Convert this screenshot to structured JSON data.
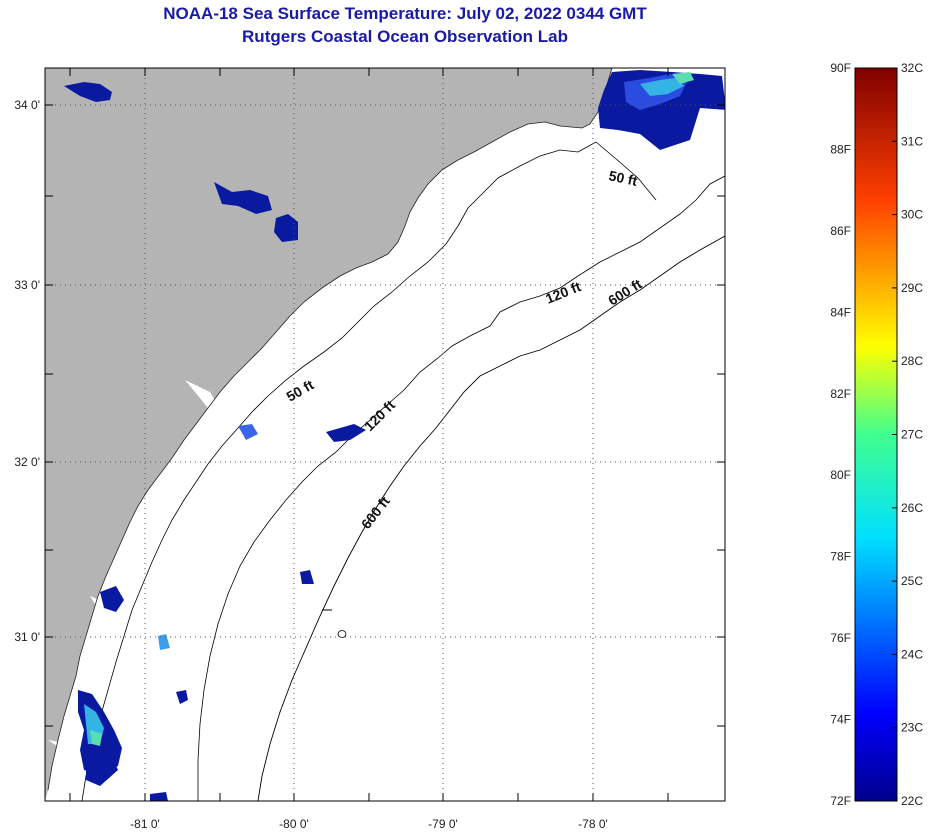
{
  "header": {
    "title": "NOAA-18 Sea Surface Temperature:  July 02, 2022 0344 GMT",
    "subtitle": "Rutgers Coastal Ocean Observation Lab"
  },
  "map": {
    "lat_ticks": [
      "34 0'",
      "33 0'",
      "32 0'",
      "31 0'"
    ],
    "lon_ticks": [
      "-81 0'",
      "-80 0'",
      "-79 0'",
      "-78 0'"
    ],
    "contour_labels": [
      "50 ft",
      "50 ft",
      "120 ft",
      "120 ft",
      "600 ft",
      "600 ft"
    ],
    "colors": {
      "land": "#b4b4b4",
      "ocean": "#ffffff",
      "cloud_blue": "#0a1aa0",
      "cloud_cyan": "#34b4e4"
    }
  },
  "colorbar": {
    "fahrenheit_labels": [
      "90F",
      "88F",
      "86F",
      "84F",
      "82F",
      "80F",
      "78F",
      "76F",
      "74F",
      "72F"
    ],
    "celsius_labels": [
      "32C",
      "31C",
      "30C",
      "29C",
      "28C",
      "27C",
      "26C",
      "25C",
      "24C",
      "23C",
      "22C"
    ],
    "range_f": [
      72,
      90
    ],
    "range_c": [
      22,
      32
    ]
  }
}
